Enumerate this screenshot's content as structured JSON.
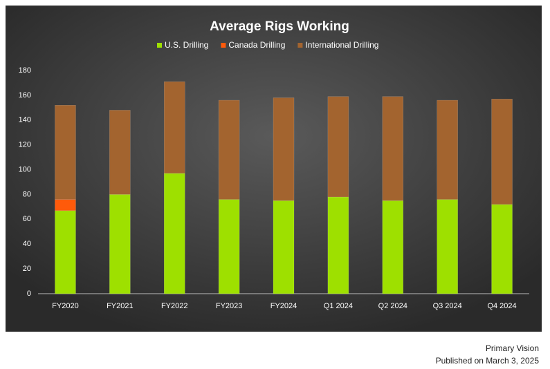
{
  "chart_data": {
    "type": "bar",
    "stacked": true,
    "title": "Average Rigs Working",
    "categories": [
      "FY2020",
      "FY2021",
      "FY2022",
      "FY2023",
      "FY2024",
      "Q1 2024",
      "Q2 2024",
      "Q3 2024",
      "Q4 2024"
    ],
    "series": [
      {
        "name": "U.S. Drilling",
        "color": "#9ee000",
        "values": [
          67,
          80,
          97,
          76,
          75,
          78,
          75,
          76,
          72
        ]
      },
      {
        "name": "Canada Drilling",
        "color": "#ff5a0a",
        "values": [
          9,
          0,
          0,
          0,
          0,
          0,
          0,
          0,
          0
        ]
      },
      {
        "name": "International Drilling",
        "color": "#a3642f",
        "values": [
          76,
          68,
          74,
          80,
          83,
          81,
          84,
          80,
          85
        ]
      }
    ],
    "ylim": [
      0,
      180
    ],
    "yticks": [
      0,
      20,
      40,
      60,
      80,
      100,
      120,
      140,
      160,
      180
    ],
    "grid": false,
    "legend": "top"
  },
  "footer": {
    "source": "Primary Vision",
    "published": "Published on March 3, 2025"
  }
}
